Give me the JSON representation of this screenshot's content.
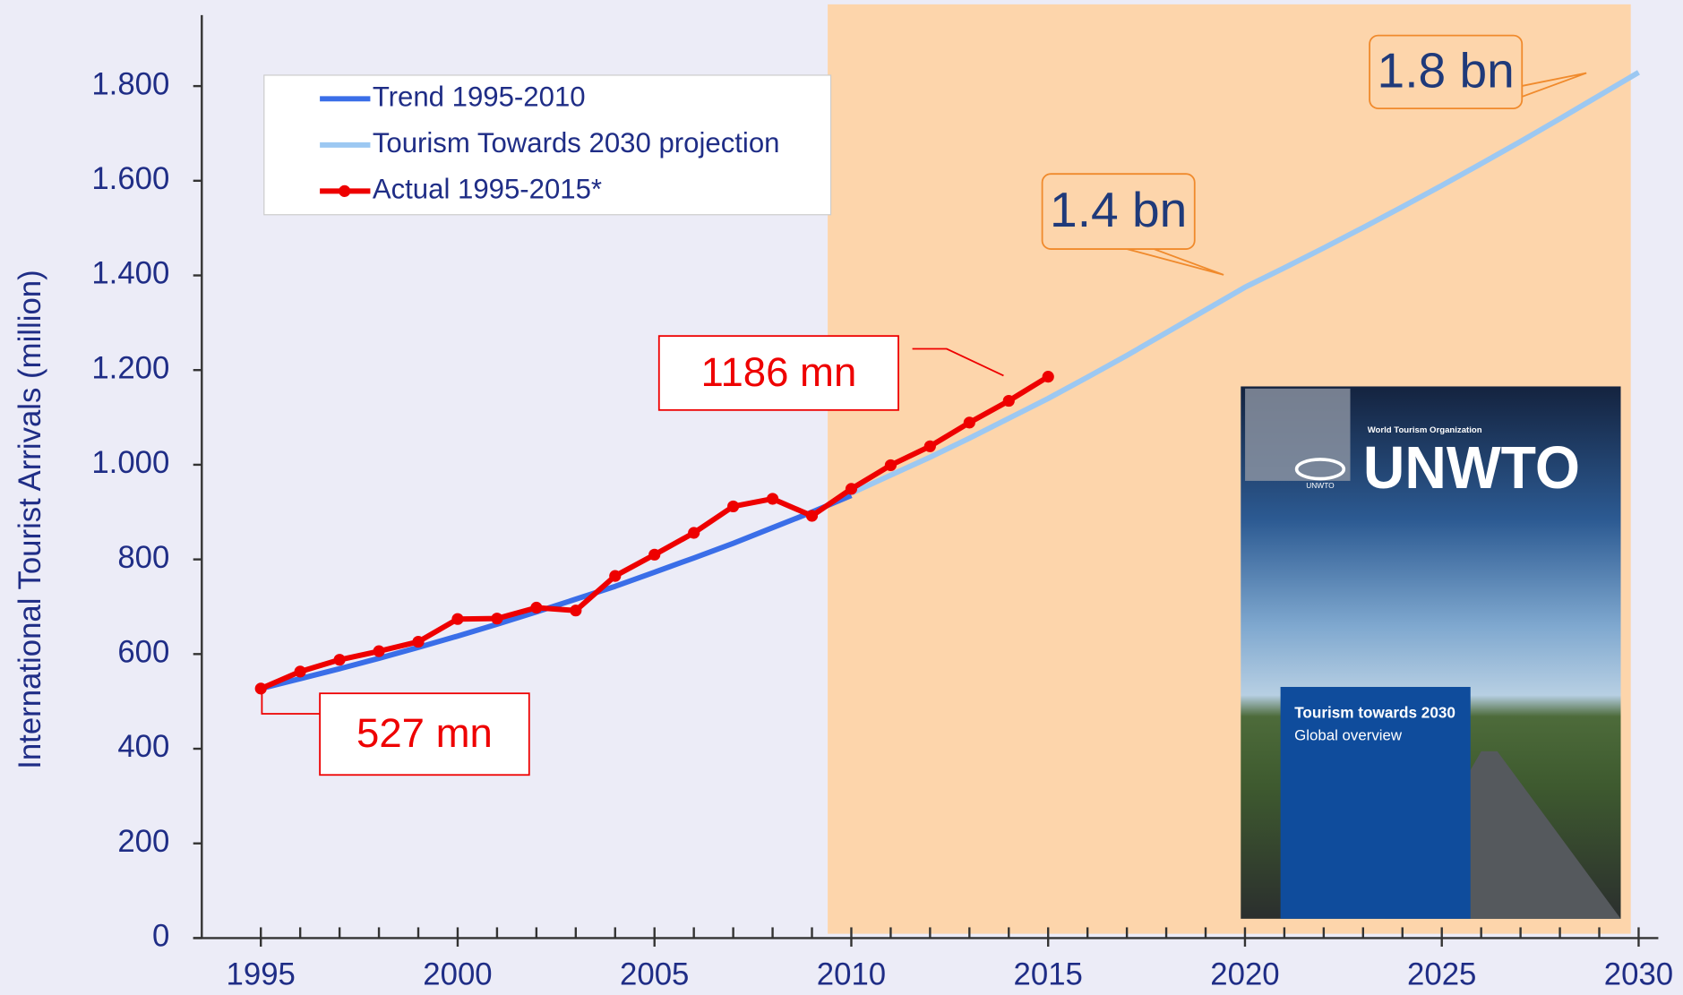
{
  "chart_data": {
    "type": "line",
    "y_axis_label": "International Tourist Arrivals (million)",
    "x": [
      1995,
      1996,
      1997,
      1998,
      1999,
      2000,
      2001,
      2002,
      2003,
      2004,
      2005,
      2006,
      2007,
      2008,
      2009,
      2010,
      2011,
      2012,
      2013,
      2014,
      2015,
      2016,
      2017,
      2018,
      2019,
      2020,
      2021,
      2022,
      2023,
      2024,
      2025,
      2026,
      2027,
      2028,
      2029,
      2030
    ],
    "series": [
      {
        "name": "Trend 1995-2010",
        "color": "#3a6ee8",
        "markers": false,
        "values": [
          527,
          548,
          569,
          591,
          614,
          638,
          663,
          689,
          716,
          743,
          773,
          803,
          834,
          867,
          900,
          935,
          null,
          null,
          null,
          null,
          null,
          null,
          null,
          null,
          null,
          null,
          null,
          null,
          null,
          null,
          null,
          null,
          null,
          null,
          null,
          null
        ]
      },
      {
        "name": "Tourism Towards 2030 projection",
        "color": "#9cc8f2",
        "markers": false,
        "values": [
          null,
          null,
          null,
          null,
          null,
          null,
          null,
          null,
          null,
          null,
          null,
          null,
          null,
          null,
          null,
          940,
          978,
          1016,
          1056,
          1098,
          1140,
          1185,
          1231,
          1279,
          1327,
          1375,
          1416,
          1458,
          1501,
          1545,
          1590,
          1636,
          1683,
          1731,
          1780,
          1829
        ]
      },
      {
        "name": "Actual 1995-2015*",
        "color": "#ee0000",
        "markers": true,
        "values": [
          527,
          563,
          588,
          606,
          626,
          674,
          675,
          698,
          692,
          765,
          810,
          856,
          912,
          928,
          892,
          949,
          999,
          1039,
          1089,
          1135,
          1186,
          null,
          null,
          null,
          null,
          null,
          null,
          null,
          null,
          null,
          null,
          null,
          null,
          null,
          null,
          null
        ]
      }
    ],
    "xlim": [
      1993.5,
      2030.5
    ],
    "xticks": [
      1995,
      2000,
      2005,
      2010,
      2015,
      2020,
      2025,
      2030
    ],
    "ylim": [
      0,
      1950
    ],
    "yticks": [
      0,
      200,
      400,
      600,
      800,
      {
        "value": 1000,
        "label": "1.000"
      },
      {
        "value": 1200,
        "label": "1.200"
      },
      {
        "value": 1400,
        "label": "1.400"
      },
      {
        "value": 1600,
        "label": "1.600"
      },
      {
        "value": 1800,
        "label": "1.800"
      }
    ],
    "shaded_region": {
      "from": 2009.4,
      "to": 2029.8,
      "color": "#fdd5ab"
    },
    "annotations": [
      {
        "text": "527 mn",
        "color": "#ee0000"
      },
      {
        "text": "1186 mn",
        "color": "#ee0000"
      },
      {
        "text": "1.4 bn",
        "color": "#1f3a7a"
      },
      {
        "text": "1.8 bn",
        "color": "#1f3a7a"
      }
    ],
    "inset": {
      "org": "World Tourism Organization",
      "logo": "UNWTO",
      "emblem": "UNWTO",
      "title": "Tourism towards 2030",
      "subtitle": "Global overview"
    }
  }
}
